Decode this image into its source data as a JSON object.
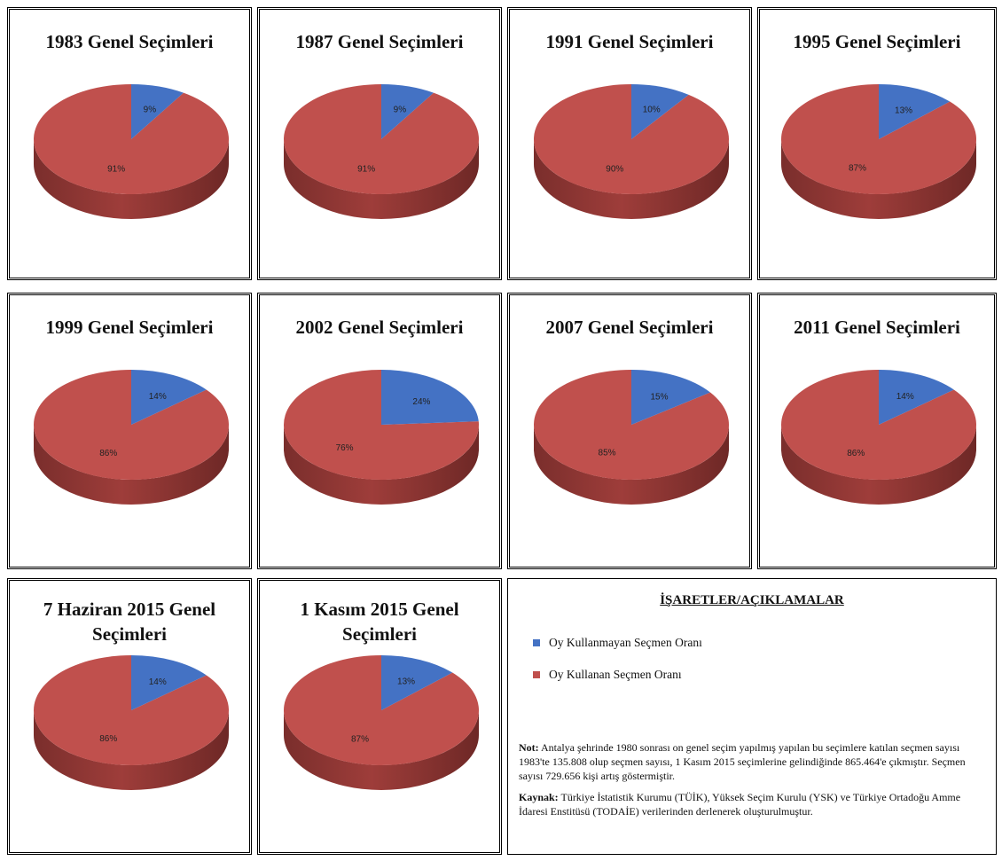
{
  "colors": {
    "non_voter": "#4472C4",
    "voter": "#C0504D"
  },
  "legend": {
    "heading": "İŞARETLER/AÇIKLAMALAR",
    "items": [
      {
        "label": "Oy Kullanmayan Seçmen Oranı",
        "color": "#4472C4"
      },
      {
        "label": "Oy Kullanan Seçmen Oranı",
        "color": "#C0504D"
      }
    ]
  },
  "note": {
    "label": "Not:",
    "text": "Antalya şehrinde 1980 sonrası on genel seçim yapılmış yapılan bu seçimlere katılan seçmen sayısı 1983'te 135.808 olup seçmen sayısı, 1 Kasım 2015 seçimlerine gelindiğinde 865.464'e çıkmıştır. Seçmen sayısı 729.656 kişi artış göstermiştir."
  },
  "source": {
    "label": "Kaynak:",
    "text": "Türkiye İstatistik Kurumu (TÜİK), Yüksek Seçim Kurulu (YSK) ve Türkiye Ortadoğu Amme İdaresi Enstitüsü (TODAİE) verilerinden derlenerek oluşturulmuştur."
  },
  "chart_data": [
    {
      "type": "pie",
      "title": "1983 Genel Seçimleri",
      "labels": [
        "Oy Kullanmayan Seçmen Oranı",
        "Oy Kullanan Seçmen Oranı"
      ],
      "values": [
        9,
        91
      ],
      "value_labels": [
        "9%",
        "91%"
      ]
    },
    {
      "type": "pie",
      "title": "1987 Genel Seçimleri",
      "labels": [
        "Oy Kullanmayan Seçmen Oranı",
        "Oy Kullanan Seçmen Oranı"
      ],
      "values": [
        9,
        91
      ],
      "value_labels": [
        "9%",
        "91%"
      ]
    },
    {
      "type": "pie",
      "title": "1991 Genel Seçimleri",
      "labels": [
        "Oy Kullanmayan Seçmen Oranı",
        "Oy Kullanan Seçmen Oranı"
      ],
      "values": [
        10,
        90
      ],
      "value_labels": [
        "10%",
        "90%"
      ]
    },
    {
      "type": "pie",
      "title": "1995 Genel Seçimleri",
      "labels": [
        "Oy Kullanmayan Seçmen Oranı",
        "Oy Kullanan Seçmen Oranı"
      ],
      "values": [
        13,
        87
      ],
      "value_labels": [
        "13%",
        "87%"
      ]
    },
    {
      "type": "pie",
      "title": "1999 Genel Seçimleri",
      "labels": [
        "Oy Kullanmayan Seçmen Oranı",
        "Oy Kullanan Seçmen Oranı"
      ],
      "values": [
        14,
        86
      ],
      "value_labels": [
        "14%",
        "86%"
      ]
    },
    {
      "type": "pie",
      "title": "2002 Genel Seçimleri",
      "labels": [
        "Oy Kullanmayan Seçmen Oranı",
        "Oy Kullanan Seçmen Oranı"
      ],
      "values": [
        24,
        76
      ],
      "value_labels": [
        "24%",
        "76%"
      ]
    },
    {
      "type": "pie",
      "title": "2007 Genel Seçimleri",
      "labels": [
        "Oy Kullanmayan Seçmen Oranı",
        "Oy Kullanan Seçmen Oranı"
      ],
      "values": [
        15,
        85
      ],
      "value_labels": [
        "15%",
        "85%"
      ]
    },
    {
      "type": "pie",
      "title": "2011 Genel Seçimleri",
      "labels": [
        "Oy Kullanmayan Seçmen Oranı",
        "Oy Kullanan Seçmen Oranı"
      ],
      "values": [
        14,
        86
      ],
      "value_labels": [
        "14%",
        "86%"
      ]
    },
    {
      "type": "pie",
      "title": "7 Haziran 2015 Genel Seçimleri",
      "labels": [
        "Oy Kullanmayan Seçmen Oranı",
        "Oy Kullanan Seçmen Oranı"
      ],
      "values": [
        14,
        86
      ],
      "value_labels": [
        "14%",
        "86%"
      ]
    },
    {
      "type": "pie",
      "title": "1 Kasım 2015 Genel Seçimleri",
      "labels": [
        "Oy Kullanmayan Seçmen Oranı",
        "Oy Kullanan Seçmen Oranı"
      ],
      "values": [
        13,
        87
      ],
      "value_labels": [
        "13%",
        "87%"
      ]
    }
  ]
}
